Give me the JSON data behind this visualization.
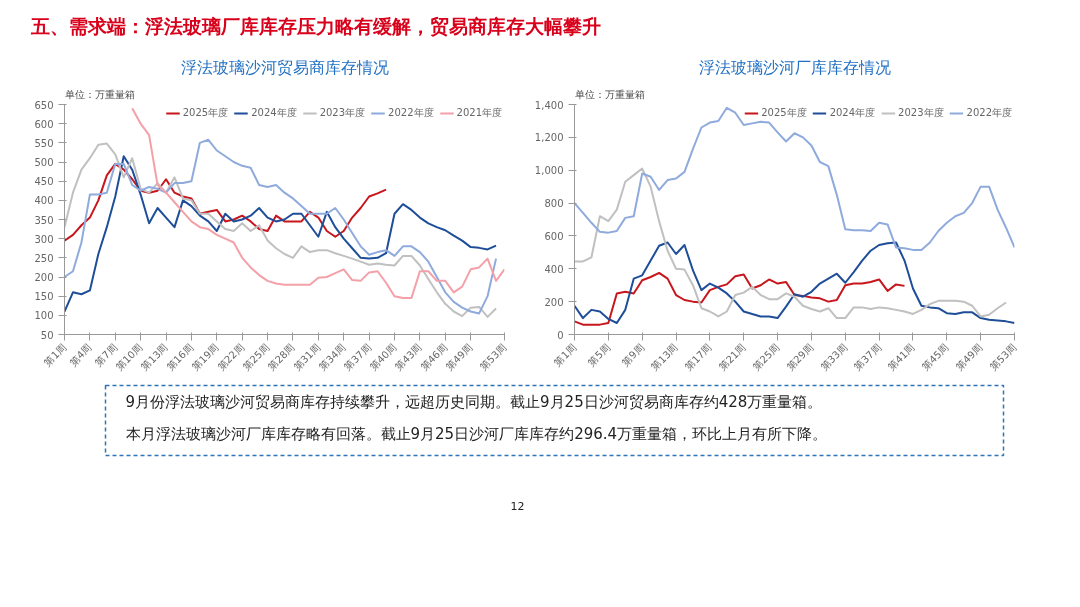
{
  "chart_data": [
    {
      "type": "other",
      "title": "五、需求端：浮法玻璃厂库库存压力略有缓解，贸易商库存大幅攀升",
      "annotations": [
        "9月份浮法玻璃沙河贸易商库存持续攀升，远超历史同期。截止9月25日沙河贸易商库存约428万重量箱。",
        "本月浮法玻璃沙河厂库库存略有回落。截止9月25日沙河厂库库存约296.4万重量箱，环比上月有所下降。",
        "12"
      ]
    },
    {
      "type": "line",
      "title": "浮法玻璃沙河贸易商库存情况",
      "ylabel": "单位：万重量箱",
      "legend": "top right",
      "grid": false,
      "ylim": [
        50,
        650
      ],
      "categories": [
        "第1周",
        null,
        null,
        "第4周",
        null,
        null,
        "第7周",
        null,
        null,
        "第10周",
        null,
        null,
        "第13周",
        null,
        null,
        "第16周",
        null,
        null,
        "第19周",
        null,
        null,
        "第22周",
        null,
        null,
        "第25周",
        null,
        null,
        "第28周",
        null,
        null,
        "第31周",
        null,
        null,
        "第34周",
        null,
        null,
        "第37周",
        null,
        null,
        "第40周",
        null,
        null,
        "第43周",
        null,
        null,
        "第46周",
        null,
        null,
        "第49周",
        null,
        null,
        null,
        "第53周"
      ],
      "yticks": [
        50,
        100,
        150,
        200,
        250,
        300,
        350,
        400,
        450,
        500,
        550,
        600,
        650
      ],
      "series": [
        {
          "name": "2025年度",
          "color": "#c8161d",
          "values": [
            295,
            310,
            335,
            355,
            400,
            465,
            495,
            480,
            455,
            425,
            420,
            425,
            455,
            420,
            410,
            405,
            365,
            370,
            375,
            345,
            350,
            360,
            345,
            325,
            320,
            360,
            345,
            345,
            345,
            370,
            355,
            320,
            305,
            320,
            355,
            380,
            410,
            418,
            428,
            null,
            null,
            null,
            null,
            null,
            null,
            null,
            null,
            null,
            null,
            null,
            null,
            null,
            null
          ]
        },
        {
          "name": "2024年度",
          "color": "#1f4e99",
          "values": [
            110,
            160,
            155,
            165,
            260,
            330,
            410,
            515,
            480,
            415,
            340,
            380,
            355,
            330,
            400,
            385,
            360,
            345,
            320,
            365,
            345,
            350,
            360,
            380,
            355,
            345,
            350,
            365,
            365,
            335,
            305,
            370,
            330,
            300,
            275,
            250,
            248,
            250,
            262,
            365,
            390,
            375,
            355,
            340,
            330,
            322,
            308,
            295,
            278,
            276,
            272,
            282,
            null
          ]
        },
        {
          "name": "2023年度",
          "color": "#c0c0c0",
          "values": [
            330,
            420,
            480,
            510,
            545,
            548,
            520,
            460,
            510,
            430,
            420,
            445,
            420,
            460,
            405,
            400,
            365,
            365,
            345,
            325,
            320,
            340,
            320,
            335,
            295,
            275,
            260,
            250,
            280,
            265,
            270,
            270,
            262,
            255,
            248,
            240,
            232,
            235,
            232,
            230,
            255,
            255,
            230,
            195,
            160,
            130,
            110,
            98,
            120,
            122,
            96,
            118,
            null
          ]
        },
        {
          "name": "2022年度",
          "color": "#8faadc",
          "values": [
            200,
            215,
            290,
            415,
            415,
            420,
            495,
            495,
            440,
            425,
            435,
            430,
            420,
            445,
            445,
            450,
            550,
            558,
            530,
            515,
            500,
            490,
            485,
            440,
            435,
            440,
            420,
            405,
            385,
            365,
            365,
            365,
            380,
            350,
            315,
            280,
            258,
            265,
            270,
            255,
            280,
            280,
            265,
            240,
            200,
            160,
            135,
            120,
            110,
            105,
            150,
            248,
            null
          ]
        },
        {
          "name": "2021年度",
          "color": "#f4a0a8",
          "values": [
            null,
            null,
            null,
            null,
            null,
            null,
            null,
            null,
            640,
            600,
            570,
            440,
            420,
            395,
            370,
            345,
            330,
            325,
            310,
            300,
            290,
            250,
            225,
            205,
            190,
            183,
            180,
            180,
            180,
            180,
            198,
            200,
            210,
            220,
            192,
            190,
            212,
            215,
            185,
            150,
            145,
            145,
            215,
            215,
            190,
            190,
            160,
            175,
            220,
            225,
            248,
            190,
            220
          ]
        }
      ]
    },
    {
      "type": "line",
      "title": "浮法玻璃沙河厂库库存情况",
      "ylabel": "单位：万重量箱",
      "legend": "top right",
      "grid": false,
      "ylim": [
        0,
        1400
      ],
      "categories": [
        "第1周",
        null,
        null,
        null,
        "第5周",
        null,
        null,
        null,
        "第9周",
        null,
        null,
        null,
        "第13周",
        null,
        null,
        null,
        "第17周",
        null,
        null,
        null,
        "第21周",
        null,
        null,
        null,
        "第25周",
        null,
        null,
        null,
        "第29周",
        null,
        null,
        null,
        "第33周",
        null,
        null,
        null,
        "第37周",
        null,
        null,
        null,
        "第41周",
        null,
        null,
        null,
        "第45周",
        null,
        null,
        null,
        "第49周",
        null,
        null,
        null,
        "第53周"
      ],
      "yticks": [
        0,
        200,
        400,
        600,
        800,
        {
          "value": 1000,
          "label": "1,000"
        },
        {
          "value": 1200,
          "label": "1,200"
        },
        {
          "value": 1400,
          "label": "1,400"
        }
      ],
      "series": [
        {
          "name": "2025年度",
          "color": "#c8161d",
          "values": [
            80,
            60,
            60,
            60,
            70,
            250,
            260,
            250,
            330,
            350,
            375,
            340,
            240,
            210,
            200,
            195,
            270,
            290,
            305,
            355,
            365,
            280,
            300,
            335,
            310,
            320,
            240,
            235,
            225,
            220,
            200,
            210,
            300,
            310,
            310,
            320,
            335,
            265,
            305,
            296,
            null,
            null,
            null,
            null,
            null,
            null,
            null,
            null,
            null,
            null,
            null,
            null,
            null
          ]
        },
        {
          "name": "2024年度",
          "color": "#1f4e99",
          "values": [
            175,
            100,
            150,
            140,
            95,
            70,
            150,
            340,
            360,
            450,
            540,
            560,
            490,
            545,
            390,
            270,
            310,
            285,
            250,
            200,
            140,
            125,
            110,
            110,
            100,
            170,
            245,
            230,
            260,
            310,
            340,
            370,
            315,
            380,
            450,
            510,
            545,
            555,
            560,
            450,
            280,
            175,
            165,
            160,
            130,
            125,
            135,
            135,
            100,
            90,
            85,
            80,
            70
          ]
        },
        {
          "name": "2023年度",
          "color": "#c0c0c0",
          "values": [
            445,
            445,
            470,
            720,
            690,
            760,
            930,
            970,
            1010,
            900,
            690,
            510,
            400,
            395,
            300,
            160,
            140,
            110,
            140,
            240,
            255,
            290,
            240,
            215,
            215,
            250,
            230,
            175,
            155,
            140,
            160,
            100,
            100,
            165,
            165,
            155,
            165,
            160,
            150,
            140,
            125,
            150,
            185,
            205,
            205,
            205,
            200,
            175,
            110,
            120,
            160,
            195,
            null
          ]
        },
        {
          "name": "2022年度",
          "color": "#8faadc",
          "values": [
            800,
            740,
            680,
            625,
            620,
            630,
            710,
            720,
            980,
            960,
            880,
            940,
            950,
            990,
            1130,
            1260,
            1290,
            1300,
            1380,
            1350,
            1275,
            1285,
            1295,
            1290,
            1230,
            1175,
            1225,
            1200,
            1150,
            1050,
            1025,
            850,
            640,
            635,
            635,
            630,
            680,
            670,
            530,
            525,
            515,
            515,
            560,
            630,
            680,
            720,
            740,
            800,
            900,
            900,
            760,
            650,
            530
          ]
        }
      ]
    }
  ]
}
